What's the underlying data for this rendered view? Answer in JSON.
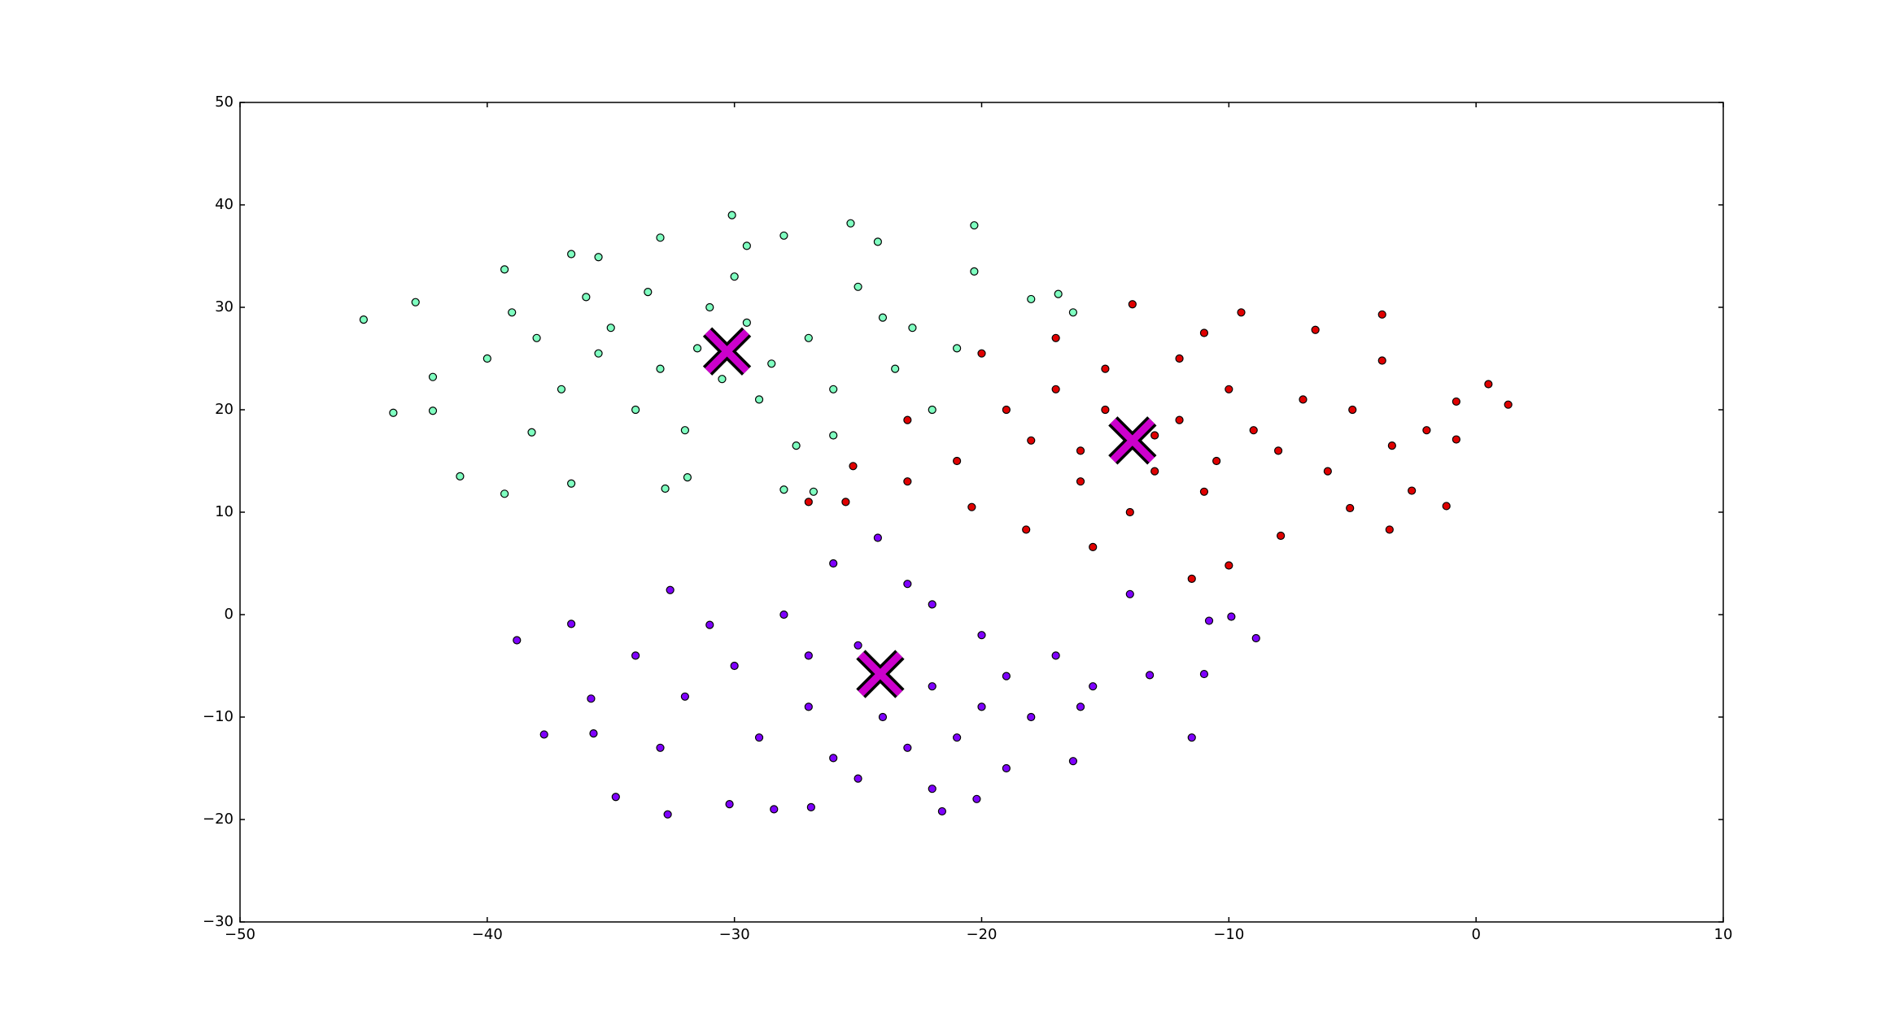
{
  "chart_data": {
    "type": "scatter",
    "xlim": [
      -50,
      10
    ],
    "ylim": [
      -30,
      50
    ],
    "xticks": [
      {
        "value": -50,
        "label": "−50"
      },
      {
        "value": -40,
        "label": "−40"
      },
      {
        "value": -30,
        "label": "−30"
      },
      {
        "value": -20,
        "label": "−20"
      },
      {
        "value": -10,
        "label": "−10"
      },
      0,
      10
    ],
    "yticks": [
      {
        "value": -30,
        "label": "−30"
      },
      {
        "value": -20,
        "label": "−20"
      },
      {
        "value": -10,
        "label": "−10"
      },
      0,
      10,
      20,
      30,
      40,
      50
    ],
    "grid": false,
    "series": [
      {
        "color": "#7fffc0",
        "marker": "circle",
        "x": [
          -45,
          -43.8,
          -42.9,
          -42.2,
          -42.2,
          -41.1,
          -39.3,
          -39.3,
          -38.2,
          -36.6,
          -36.6,
          -35.5,
          -33,
          -32.8,
          -31.9,
          -30.1,
          -29.5,
          -28,
          -26.8,
          -25.3,
          -24.2,
          -20.3,
          -20.3,
          -18,
          -16.9,
          -16.3,
          -27.5,
          -28,
          -23.5,
          -22,
          -35,
          -33,
          -37,
          -31,
          -29,
          -27,
          -25,
          -34,
          -38,
          -40,
          -32,
          -28.5,
          -26,
          -24,
          -30,
          -36,
          -39,
          -21,
          -22.8,
          -26,
          -33.5,
          -31.5,
          -29.5,
          -35.5,
          -30.5
        ],
        "values": [
          28.8,
          19.7,
          30.5,
          23.2,
          19.9,
          13.5,
          11.8,
          33.7,
          17.8,
          12.8,
          35.2,
          34.9,
          36.8,
          12.3,
          13.4,
          39,
          36,
          37,
          12,
          38.2,
          36.4,
          38,
          33.5,
          30.8,
          31.3,
          29.5,
          16.5,
          12.2,
          24,
          20,
          28,
          24,
          22,
          30,
          21,
          27,
          32,
          20,
          27,
          25,
          18,
          24.5,
          22,
          29,
          33,
          31,
          29.5,
          26,
          28,
          17.5,
          31.5,
          26,
          28.5,
          25.5,
          23
        ]
      },
      {
        "color": "#e00000",
        "marker": "circle",
        "x": [
          1.3,
          0.5,
          -0.8,
          -0.8,
          -1.2,
          -2.6,
          -3.5,
          -3.4,
          -3.8,
          -3.8,
          -5.1,
          -6.5,
          -7.9,
          -9.5,
          -10,
          -11.5,
          -11,
          -13.9,
          -15.5,
          -18.2,
          -20.4,
          -23,
          -25.5,
          -27,
          -25.2,
          -23,
          -20,
          -17,
          -15,
          -13,
          -12,
          -10,
          -8,
          -6,
          -16,
          -18,
          -14,
          -11,
          -9,
          -7,
          -19,
          -21,
          -15,
          -12,
          -17,
          -13,
          -16,
          -10.5,
          -5,
          -2
        ],
        "values": [
          20.5,
          22.5,
          20.8,
          17.1,
          10.6,
          12.1,
          8.3,
          16.5,
          29.3,
          24.8,
          10.4,
          27.8,
          7.7,
          29.5,
          4.8,
          3.5,
          27.5,
          30.3,
          6.6,
          8.3,
          10.5,
          13,
          11,
          11,
          14.5,
          19,
          25.5,
          22,
          20,
          14,
          19,
          22,
          16,
          14,
          13,
          17,
          10,
          12,
          18,
          21,
          20,
          15,
          24,
          25,
          27,
          17.5,
          16,
          15,
          20,
          18
        ]
      },
      {
        "color": "#7f00ff",
        "marker": "circle",
        "x": [
          -38.8,
          -37.7,
          -36.6,
          -35.7,
          -35.8,
          -34.8,
          -32.7,
          -32.6,
          -30.2,
          -28.4,
          -26.9,
          -26,
          -24.2,
          -22,
          -21.6,
          -20.2,
          -19,
          -16.3,
          -15.5,
          -14,
          -13.2,
          -11.5,
          -11,
          -10.8,
          -9.9,
          -8.9,
          -27,
          -25,
          -22,
          -20,
          -18,
          -30,
          -32,
          -28,
          -23,
          -21,
          -26,
          -17,
          -34,
          -29,
          -24,
          -19,
          -31,
          -25,
          -16,
          -22,
          -27,
          -23,
          -20,
          -33
        ],
        "values": [
          -2.5,
          -11.7,
          -0.9,
          -11.6,
          -8.2,
          -17.8,
          -19.5,
          2.4,
          -18.5,
          -19,
          -18.8,
          5,
          7.5,
          -17,
          -19.2,
          -18,
          -15,
          -14.3,
          -7,
          2,
          -5.9,
          -12,
          -5.8,
          -0.6,
          -0.2,
          -2.3,
          -9,
          -3,
          -7,
          -2,
          -10,
          -5,
          -8,
          0,
          3,
          -12,
          -14,
          -4,
          -4,
          -12,
          -10,
          -6,
          -1,
          -16,
          -9,
          1,
          -4,
          -13,
          -9,
          -13
        ]
      },
      {
        "color": "#cc00cc",
        "marker": "x",
        "x": [
          -30.3,
          -13.9,
          -24.1
        ],
        "values": [
          25.7,
          17,
          -5.8
        ]
      }
    ]
  }
}
